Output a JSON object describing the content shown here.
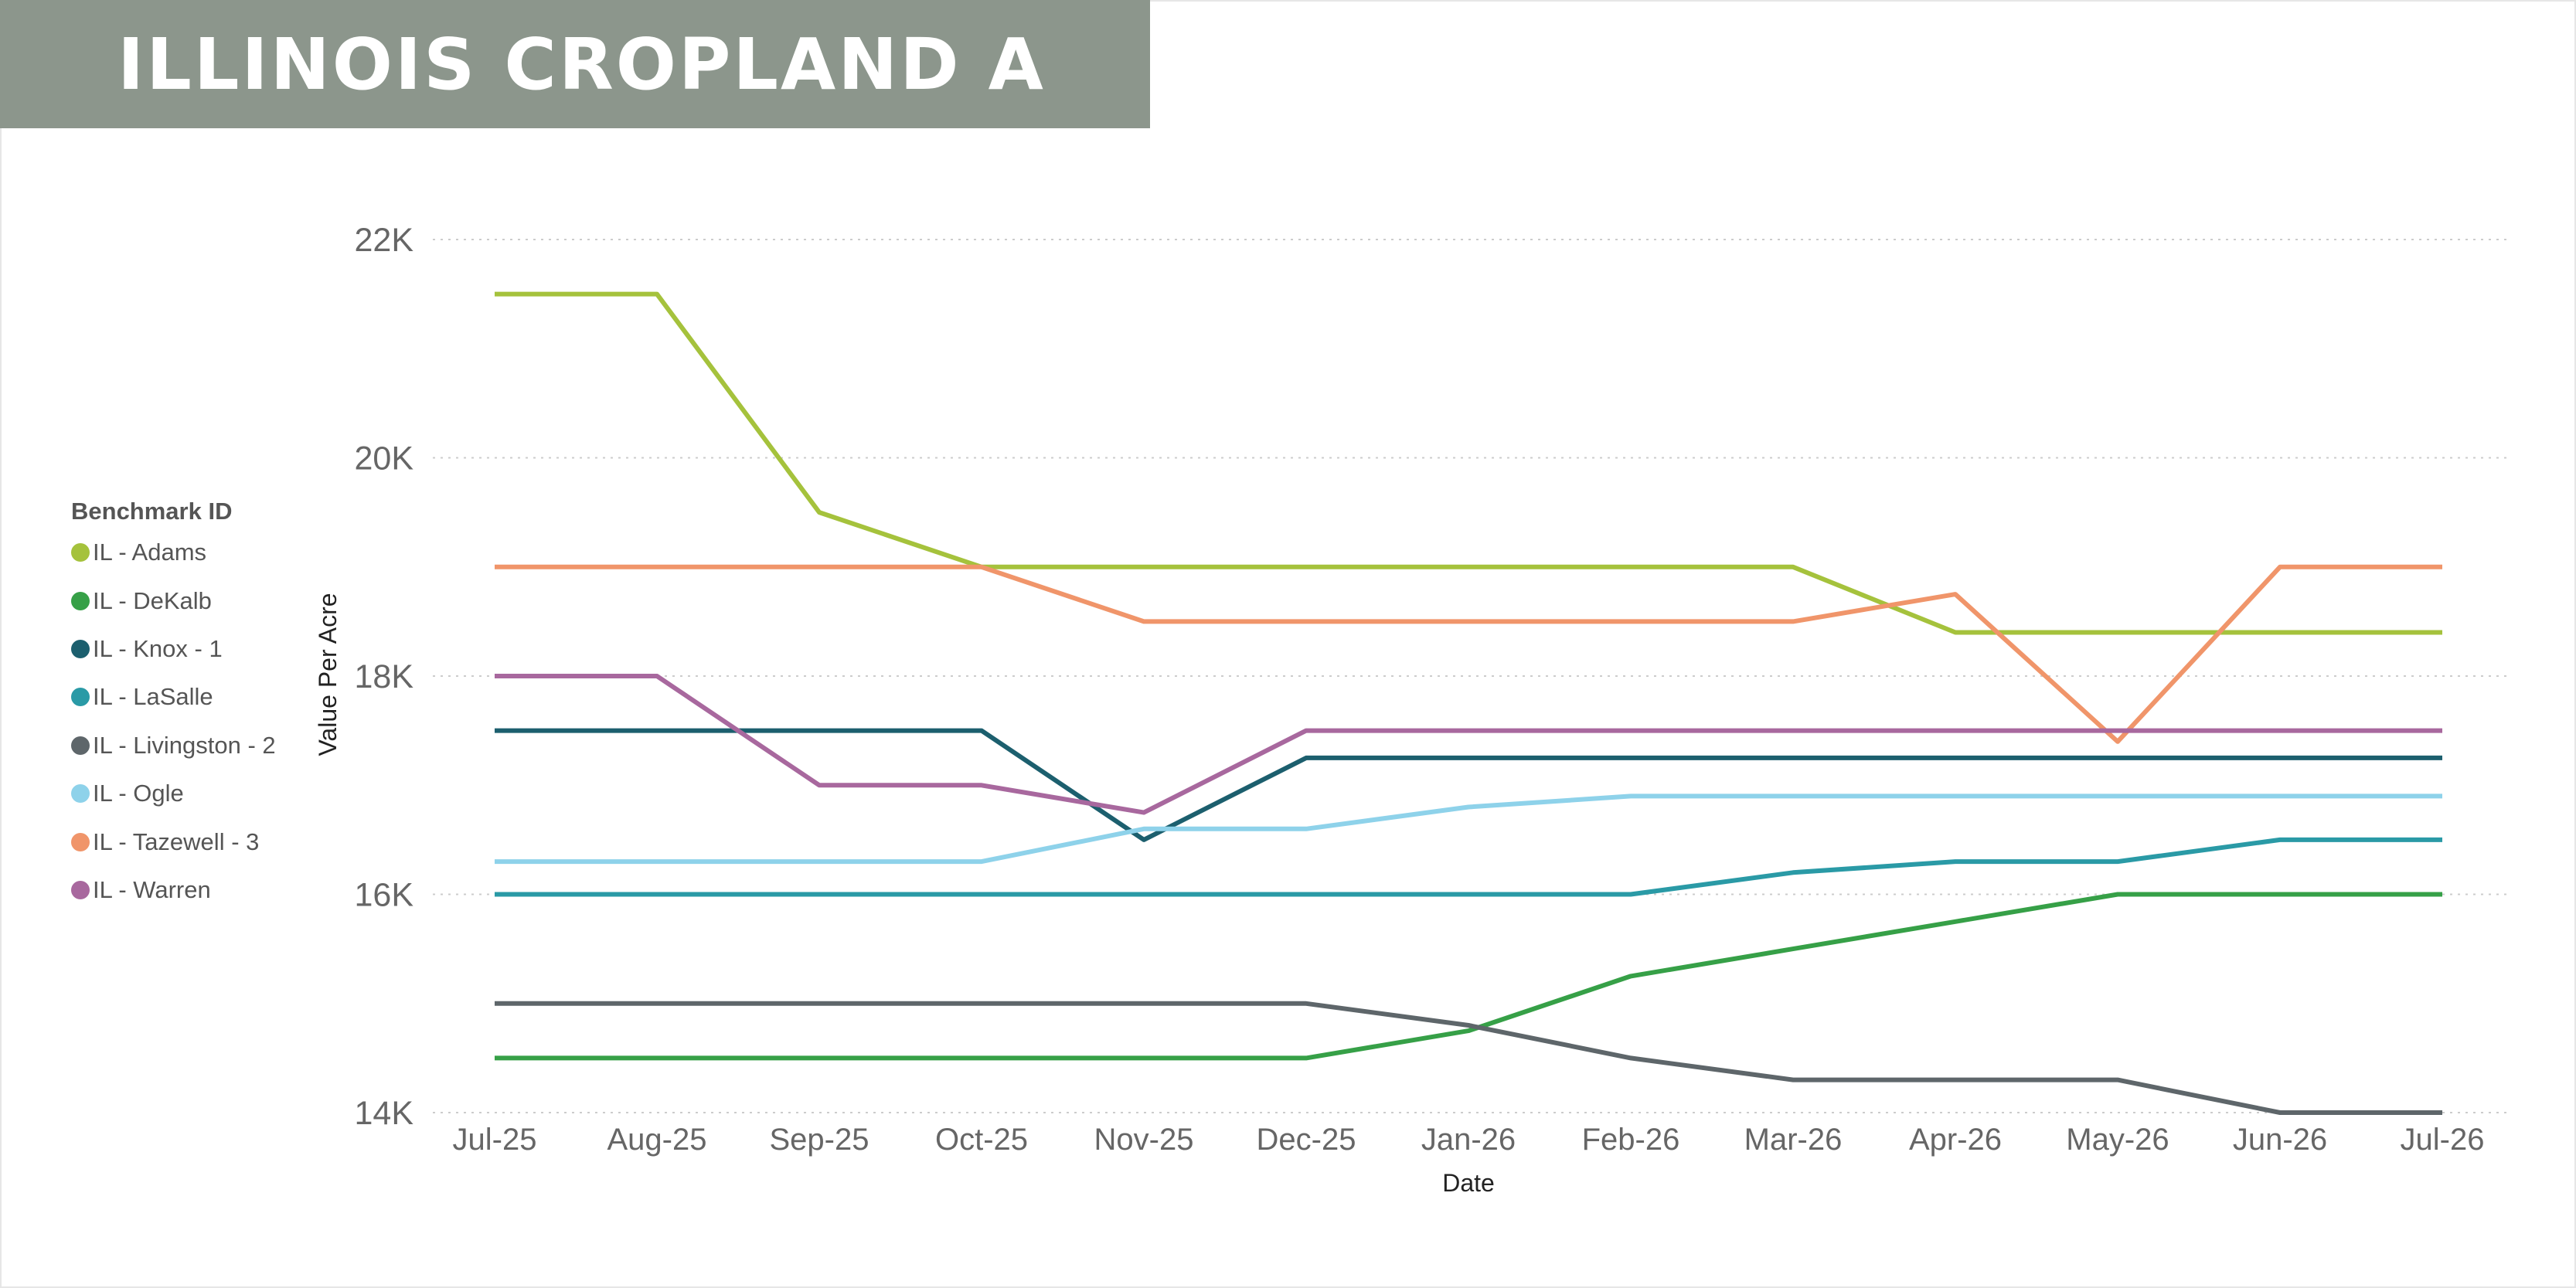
{
  "header": {
    "title": "ILLINOIS CROPLAND A"
  },
  "legend": {
    "title": "Benchmark ID"
  },
  "chart_data": {
    "type": "line",
    "xlabel": "Date",
    "ylabel": "Value Per Acre",
    "ylim": [
      14000,
      22000
    ],
    "y_ticks": [
      14000,
      16000,
      18000,
      20000,
      22000
    ],
    "y_tick_labels": [
      "14K",
      "16K",
      "18K",
      "20K",
      "22K"
    ],
    "grid": "horizontal-dotted",
    "legend_position": "left",
    "categories": [
      "Jul-25",
      "Aug-25",
      "Sep-25",
      "Oct-25",
      "Nov-25",
      "Dec-25",
      "Jan-26",
      "Feb-26",
      "Mar-26",
      "Apr-26",
      "May-26",
      "Jun-26",
      "Jul-26"
    ],
    "series": [
      {
        "name": "IL - Adams",
        "color": "#a5c23c",
        "values": [
          21500,
          21500,
          19500,
          19000,
          19000,
          19000,
          19000,
          19000,
          19000,
          18400,
          18400,
          18400,
          18400
        ]
      },
      {
        "name": "IL - DeKalb",
        "color": "#36a047",
        "values": [
          14500,
          14500,
          14500,
          14500,
          14500,
          14500,
          14750,
          15250,
          15500,
          15750,
          16000,
          16000,
          16000
        ]
      },
      {
        "name": "IL - Knox - 1",
        "color": "#1c5f6e",
        "values": [
          17500,
          17500,
          17500,
          17500,
          16500,
          17250,
          17250,
          17250,
          17250,
          17250,
          17250,
          17250,
          17250
        ]
      },
      {
        "name": "IL - LaSalle",
        "color": "#2a9aa6",
        "values": [
          16000,
          16000,
          16000,
          16000,
          16000,
          16000,
          16000,
          16000,
          16200,
          16300,
          16300,
          16500,
          16500
        ]
      },
      {
        "name": "IL - Livingston - 2",
        "color": "#5e666a",
        "values": [
          15000,
          15000,
          15000,
          15000,
          15000,
          15000,
          14800,
          14500,
          14300,
          14300,
          14300,
          14000,
          14000
        ]
      },
      {
        "name": "IL - Ogle",
        "color": "#8ed2ea",
        "values": [
          16300,
          16300,
          16300,
          16300,
          16600,
          16600,
          16800,
          16900,
          16900,
          16900,
          16900,
          16900,
          16900
        ]
      },
      {
        "name": "IL - Tazewell - 3",
        "color": "#f0956a",
        "values": [
          19000,
          19000,
          19000,
          19000,
          18500,
          18500,
          18500,
          18500,
          18500,
          18750,
          17400,
          19000,
          19000
        ]
      },
      {
        "name": "IL - Warren",
        "color": "#a8689e",
        "values": [
          18000,
          18000,
          17000,
          17000,
          16750,
          17500,
          17500,
          17500,
          17500,
          17500,
          17500,
          17500,
          17500
        ]
      }
    ]
  }
}
